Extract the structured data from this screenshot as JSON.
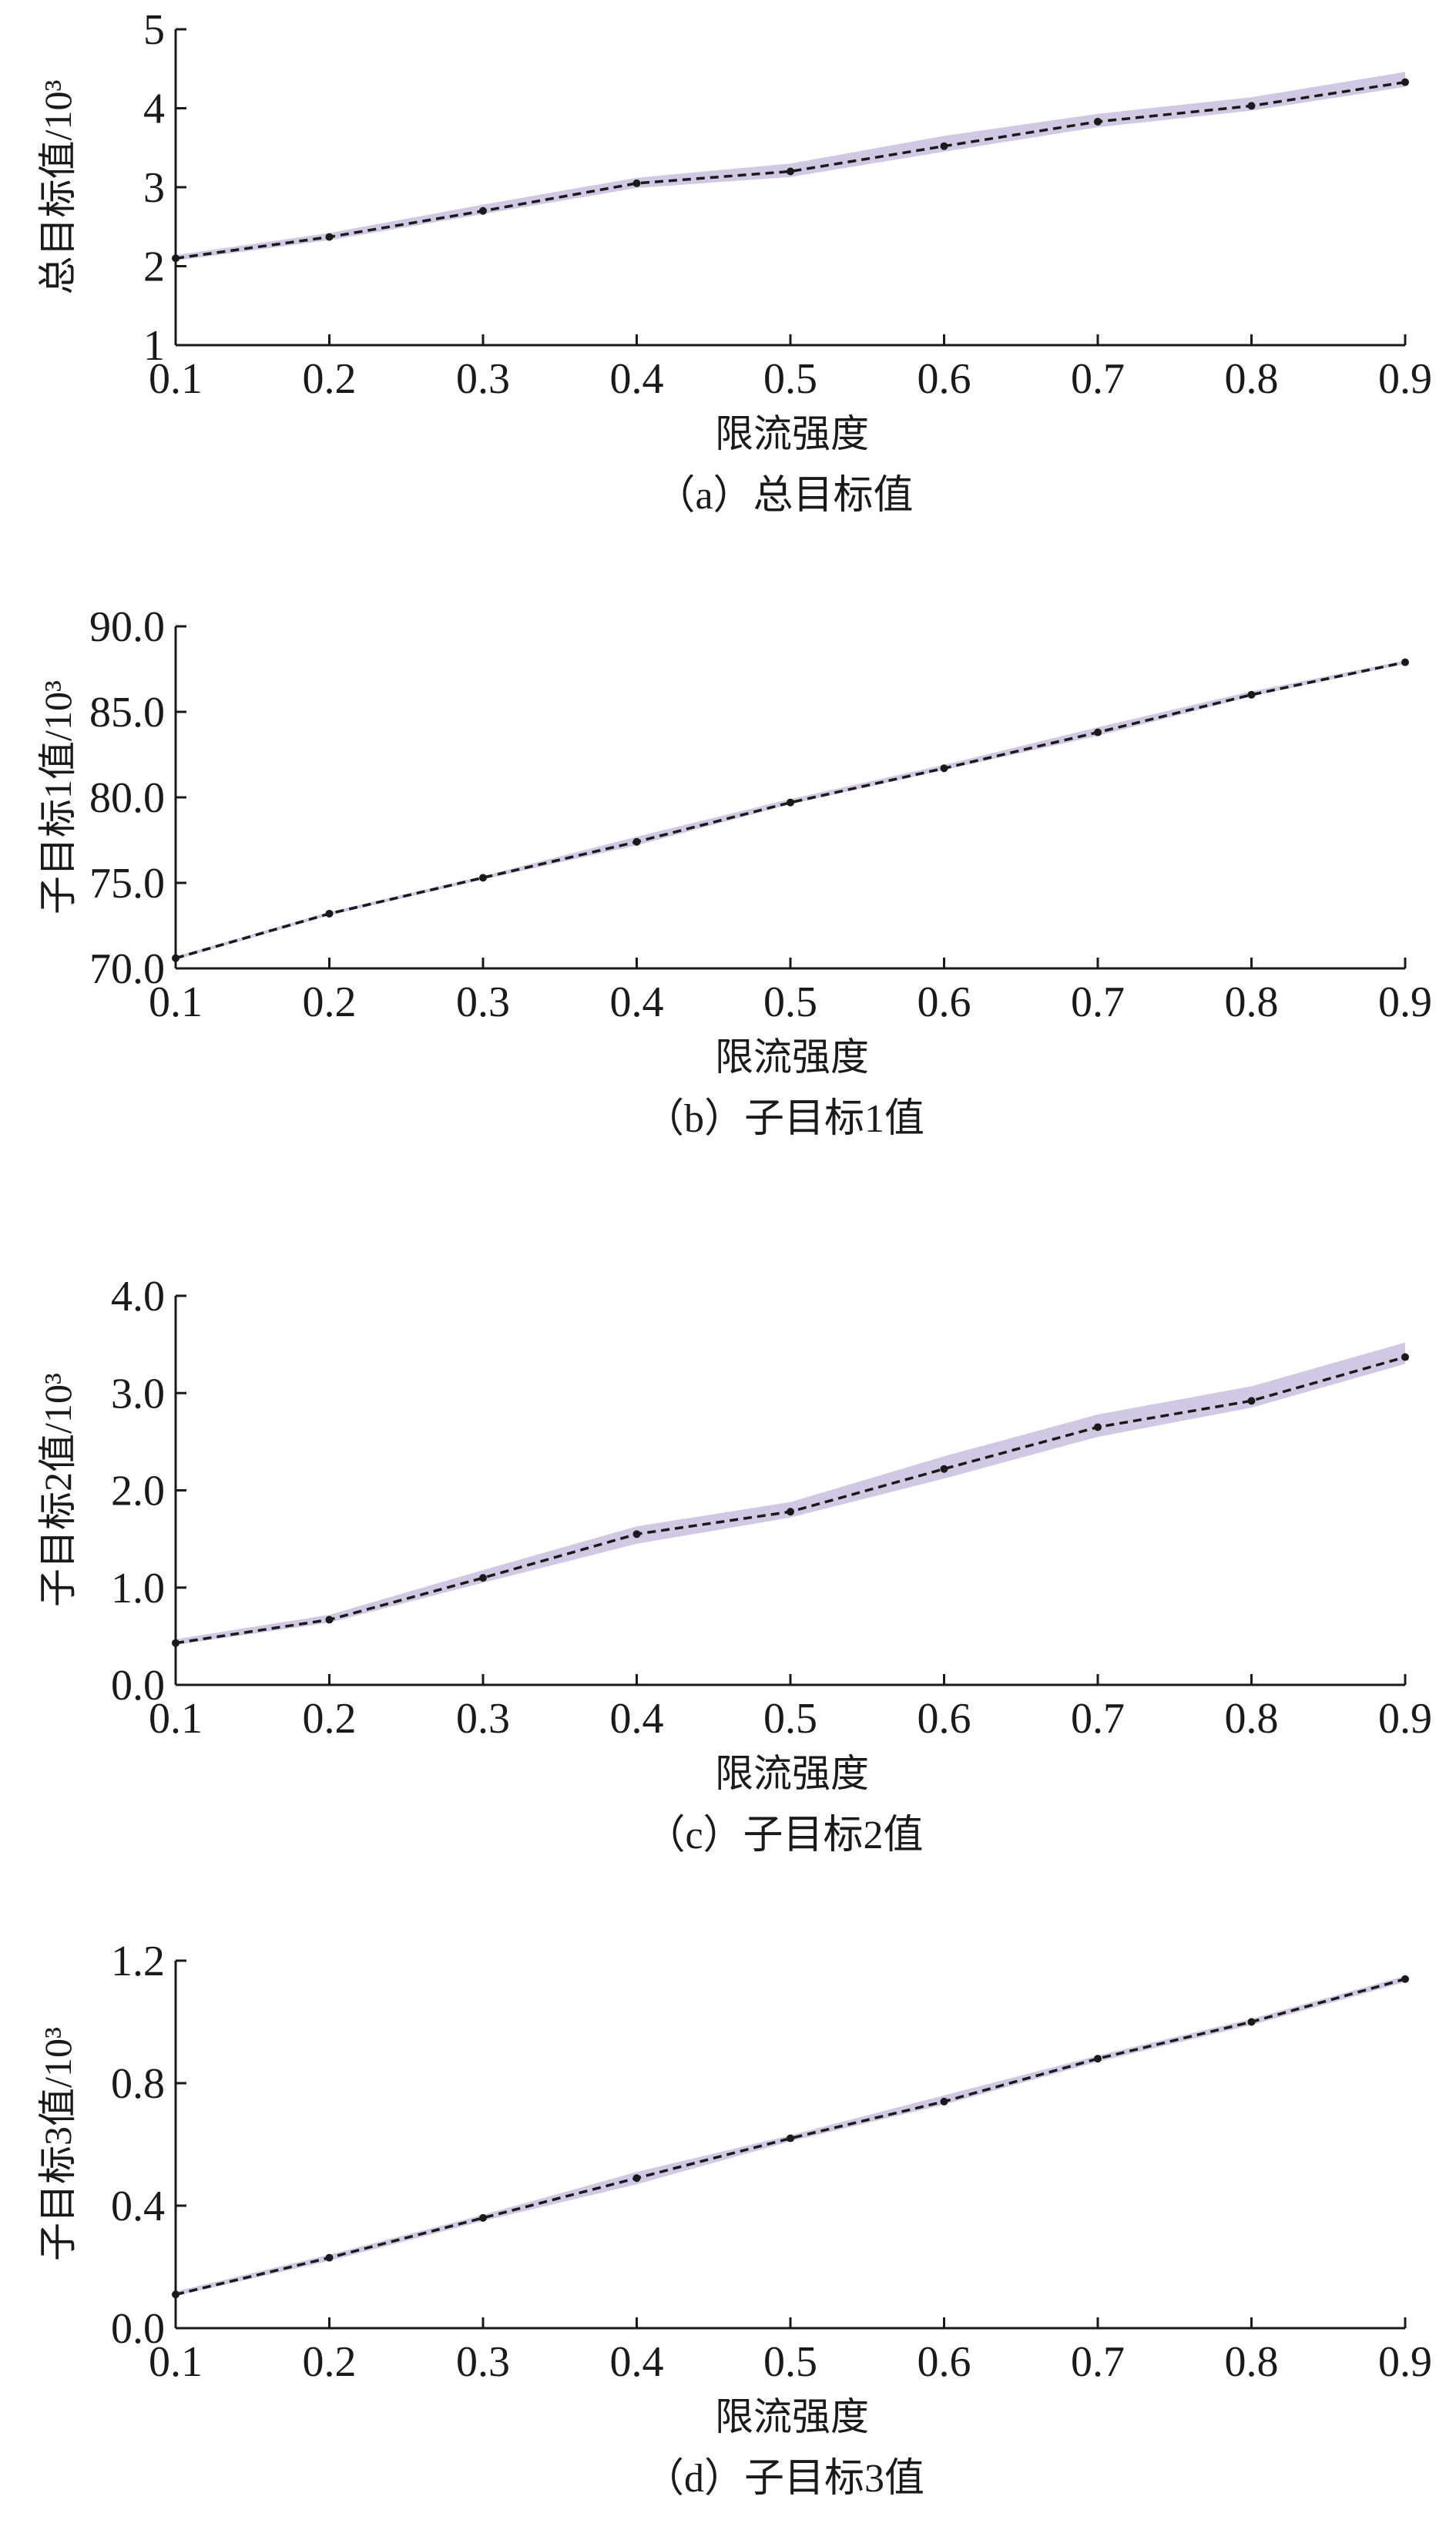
{
  "chart_data": [
    {
      "type": "line",
      "caption": "（a）总目标值",
      "xlabel": "限流强度",
      "ylabel": "总目标值/10³",
      "xlim": [
        0.1,
        0.9
      ],
      "ylim": [
        1,
        5
      ],
      "x_ticks": [
        "0.1",
        "0.2",
        "0.3",
        "0.4",
        "0.5",
        "0.6",
        "0.7",
        "0.8",
        "0.9"
      ],
      "y_ticks": [
        "1",
        "2",
        "3",
        "4",
        "5"
      ],
      "x": [
        0.1,
        0.2,
        0.3,
        0.4,
        0.5,
        0.6,
        0.7,
        0.8,
        0.9
      ],
      "values": [
        2.1,
        2.37,
        2.7,
        3.05,
        3.2,
        3.52,
        3.83,
        4.03,
        4.33
      ],
      "band_upper": [
        2.14,
        2.42,
        2.78,
        3.12,
        3.3,
        3.65,
        3.93,
        4.14,
        4.46
      ],
      "band_lower": [
        2.07,
        2.33,
        2.66,
        2.99,
        3.13,
        3.45,
        3.76,
        3.97,
        4.27
      ],
      "colors": {
        "band": "#c9bedf",
        "line": "#1a1a1a"
      },
      "grid": false
    },
    {
      "type": "line",
      "caption": "（b）子目标1值",
      "xlabel": "限流强度",
      "ylabel": "子目标1值/10³",
      "xlim": [
        0.1,
        0.9
      ],
      "ylim": [
        70,
        90
      ],
      "x_ticks": [
        "0.1",
        "0.2",
        "0.3",
        "0.4",
        "0.5",
        "0.6",
        "0.7",
        "0.8",
        "0.9"
      ],
      "y_ticks": [
        "70.0",
        "75.0",
        "80.0",
        "85.0",
        "90.0"
      ],
      "x": [
        0.1,
        0.2,
        0.3,
        0.4,
        0.5,
        0.6,
        0.7,
        0.8,
        0.9
      ],
      "values": [
        70.6,
        73.2,
        75.3,
        77.4,
        79.7,
        81.7,
        83.8,
        86.0,
        87.9
      ],
      "band_upper": [
        70.7,
        73.3,
        75.4,
        77.7,
        79.9,
        81.9,
        84.1,
        86.2,
        88.0
      ],
      "band_lower": [
        70.5,
        73.1,
        75.2,
        77.2,
        79.6,
        81.6,
        83.6,
        85.9,
        87.8
      ],
      "colors": {
        "band": "#c9bedf",
        "line": "#1a1a1a"
      },
      "grid": false
    },
    {
      "type": "line",
      "caption": "（c）子目标2值",
      "xlabel": "限流强度",
      "ylabel": "子目标2值/10³",
      "xlim": [
        0.1,
        0.9
      ],
      "ylim": [
        0.0,
        4.0
      ],
      "x_ticks": [
        "0.1",
        "0.2",
        "0.3",
        "0.4",
        "0.5",
        "0.6",
        "0.7",
        "0.8",
        "0.9"
      ],
      "y_ticks": [
        "0.0",
        "1.0",
        "2.0",
        "3.0",
        "4.0"
      ],
      "x": [
        0.1,
        0.2,
        0.3,
        0.4,
        0.5,
        0.6,
        0.7,
        0.8,
        0.9
      ],
      "values": [
        0.43,
        0.67,
        1.1,
        1.55,
        1.78,
        2.22,
        2.65,
        2.92,
        3.37
      ],
      "band_upper": [
        0.47,
        0.72,
        1.18,
        1.63,
        1.88,
        2.35,
        2.78,
        3.07,
        3.52
      ],
      "band_lower": [
        0.41,
        0.64,
        1.05,
        1.45,
        1.72,
        2.12,
        2.55,
        2.85,
        3.3
      ],
      "colors": {
        "band": "#c9bedf",
        "line": "#1a1a1a"
      },
      "grid": false
    },
    {
      "type": "line",
      "caption": "（d）子目标3值",
      "xlabel": "限流强度",
      "ylabel": "子目标3值/10³",
      "xlim": [
        0.1,
        0.9
      ],
      "ylim": [
        0.0,
        1.2
      ],
      "x_ticks": [
        "0.1",
        "0.2",
        "0.3",
        "0.4",
        "0.5",
        "0.6",
        "0.7",
        "0.8",
        "0.9"
      ],
      "y_ticks": [
        "0.0",
        "0.4",
        "0.8",
        "1.2"
      ],
      "x": [
        0.1,
        0.2,
        0.3,
        0.4,
        0.5,
        0.6,
        0.7,
        0.8,
        0.9
      ],
      "values": [
        0.11,
        0.23,
        0.36,
        0.49,
        0.62,
        0.74,
        0.88,
        1.0,
        1.14
      ],
      "band_upper": [
        0.12,
        0.24,
        0.37,
        0.51,
        0.63,
        0.76,
        0.89,
        1.01,
        1.15
      ],
      "band_lower": [
        0.105,
        0.22,
        0.35,
        0.47,
        0.61,
        0.73,
        0.87,
        0.99,
        1.13
      ],
      "colors": {
        "band": "#c9bedf",
        "line": "#1a1a1a"
      },
      "grid": false
    }
  ]
}
